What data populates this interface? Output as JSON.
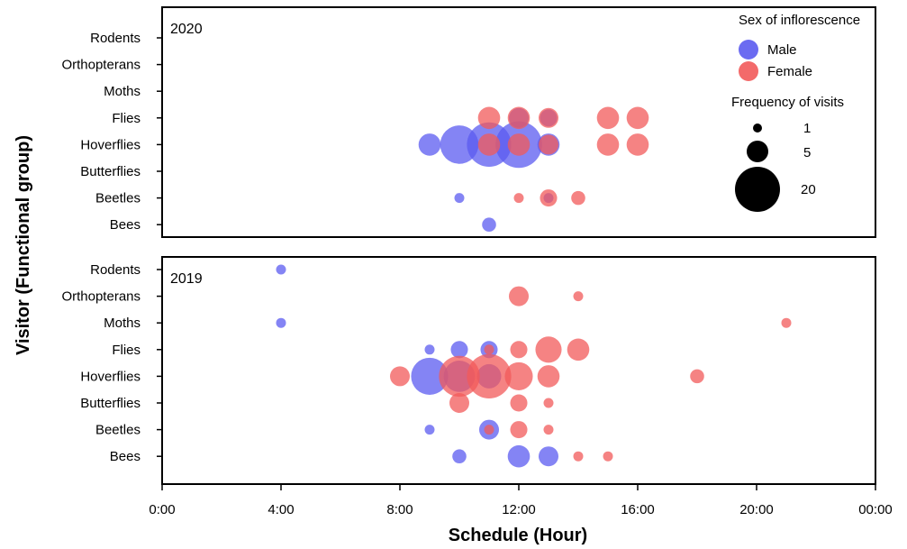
{
  "chart_data": {
    "type": "scatter",
    "xlabel": "Schedule (Hour)",
    "ylabel": "Visitor (Functional group)",
    "x_ticks": [
      "0:00",
      "4:00",
      "8:00",
      "12:00",
      "16:00",
      "20:00",
      "00:00"
    ],
    "xlim": [
      0,
      24
    ],
    "categories": [
      "Rodents",
      "Orthopterans",
      "Moths",
      "Flies",
      "Hoverflies",
      "Butterflies",
      "Beetles",
      "Bees"
    ],
    "grid": false,
    "colors": {
      "Male": "#5b5bf0",
      "Female": "#f25a5a"
    },
    "legend": {
      "position": "top-right",
      "color_title": "Sex of inflorescence",
      "color_entries": [
        "Male",
        "Female"
      ],
      "size_title": "Frequency of visits",
      "size_entries": [
        1,
        5,
        20
      ]
    },
    "panels": [
      {
        "label": "2020",
        "series": [
          {
            "name": "Male",
            "points": [
              {
                "hour": 9,
                "visitor": "Hoverflies",
                "frequency": 5
              },
              {
                "hour": 10,
                "visitor": "Hoverflies",
                "frequency": 15
              },
              {
                "hour": 11,
                "visitor": "Hoverflies",
                "frequency": 20
              },
              {
                "hour": 12,
                "visitor": "Hoverflies",
                "frequency": 22
              },
              {
                "hour": 13,
                "visitor": "Hoverflies",
                "frequency": 5
              },
              {
                "hour": 12,
                "visitor": "Flies",
                "frequency": 4
              },
              {
                "hour": 13,
                "visitor": "Flies",
                "frequency": 3
              },
              {
                "hour": 10,
                "visitor": "Beetles",
                "frequency": 1
              },
              {
                "hour": 13,
                "visitor": "Beetles",
                "frequency": 1
              },
              {
                "hour": 11,
                "visitor": "Bees",
                "frequency": 2
              }
            ]
          },
          {
            "name": "Female",
            "points": [
              {
                "hour": 11,
                "visitor": "Flies",
                "frequency": 5
              },
              {
                "hour": 12,
                "visitor": "Flies",
                "frequency": 5
              },
              {
                "hour": 13,
                "visitor": "Flies",
                "frequency": 4
              },
              {
                "hour": 15,
                "visitor": "Flies",
                "frequency": 5
              },
              {
                "hour": 16,
                "visitor": "Flies",
                "frequency": 5
              },
              {
                "hour": 11,
                "visitor": "Hoverflies",
                "frequency": 5
              },
              {
                "hour": 12,
                "visitor": "Hoverflies",
                "frequency": 5
              },
              {
                "hour": 13,
                "visitor": "Hoverflies",
                "frequency": 4
              },
              {
                "hour": 15,
                "visitor": "Hoverflies",
                "frequency": 5
              },
              {
                "hour": 16,
                "visitor": "Hoverflies",
                "frequency": 5
              },
              {
                "hour": 12,
                "visitor": "Beetles",
                "frequency": 1
              },
              {
                "hour": 13,
                "visitor": "Beetles",
                "frequency": 3
              },
              {
                "hour": 14,
                "visitor": "Beetles",
                "frequency": 2
              }
            ]
          }
        ]
      },
      {
        "label": "2019",
        "series": [
          {
            "name": "Male",
            "points": [
              {
                "hour": 4,
                "visitor": "Rodents",
                "frequency": 1
              },
              {
                "hour": 4,
                "visitor": "Moths",
                "frequency": 1
              },
              {
                "hour": 9,
                "visitor": "Flies",
                "frequency": 1
              },
              {
                "hour": 10,
                "visitor": "Flies",
                "frequency": 3
              },
              {
                "hour": 11,
                "visitor": "Flies",
                "frequency": 3
              },
              {
                "hour": 9,
                "visitor": "Hoverflies",
                "frequency": 14
              },
              {
                "hour": 10,
                "visitor": "Hoverflies",
                "frequency": 10
              },
              {
                "hour": 11,
                "visitor": "Hoverflies",
                "frequency": 6
              },
              {
                "hour": 9,
                "visitor": "Beetles",
                "frequency": 1
              },
              {
                "hour": 11,
                "visitor": "Beetles",
                "frequency": 4
              },
              {
                "hour": 10,
                "visitor": "Bees",
                "frequency": 2
              },
              {
                "hour": 12,
                "visitor": "Bees",
                "frequency": 5
              },
              {
                "hour": 13,
                "visitor": "Bees",
                "frequency": 4
              }
            ]
          },
          {
            "name": "Female",
            "points": [
              {
                "hour": 12,
                "visitor": "Orthopterans",
                "frequency": 4
              },
              {
                "hour": 14,
                "visitor": "Orthopterans",
                "frequency": 1
              },
              {
                "hour": 21,
                "visitor": "Moths",
                "frequency": 1
              },
              {
                "hour": 11,
                "visitor": "Flies",
                "frequency": 1
              },
              {
                "hour": 12,
                "visitor": "Flies",
                "frequency": 3
              },
              {
                "hour": 13,
                "visitor": "Flies",
                "frequency": 7
              },
              {
                "hour": 14,
                "visitor": "Flies",
                "frequency": 5
              },
              {
                "hour": 8,
                "visitor": "Hoverflies",
                "frequency": 4
              },
              {
                "hour": 10,
                "visitor": "Hoverflies",
                "frequency": 17
              },
              {
                "hour": 11,
                "visitor": "Hoverflies",
                "frequency": 20
              },
              {
                "hour": 12,
                "visitor": "Hoverflies",
                "frequency": 8
              },
              {
                "hour": 13,
                "visitor": "Hoverflies",
                "frequency": 5
              },
              {
                "hour": 18,
                "visitor": "Hoverflies",
                "frequency": 2
              },
              {
                "hour": 10,
                "visitor": "Butterflies",
                "frequency": 4
              },
              {
                "hour": 12,
                "visitor": "Butterflies",
                "frequency": 3
              },
              {
                "hour": 13,
                "visitor": "Butterflies",
                "frequency": 1
              },
              {
                "hour": 11,
                "visitor": "Beetles",
                "frequency": 1
              },
              {
                "hour": 12,
                "visitor": "Beetles",
                "frequency": 3
              },
              {
                "hour": 13,
                "visitor": "Beetles",
                "frequency": 1
              },
              {
                "hour": 14,
                "visitor": "Bees",
                "frequency": 1
              },
              {
                "hour": 15,
                "visitor": "Bees",
                "frequency": 1
              }
            ]
          }
        ]
      }
    ]
  }
}
